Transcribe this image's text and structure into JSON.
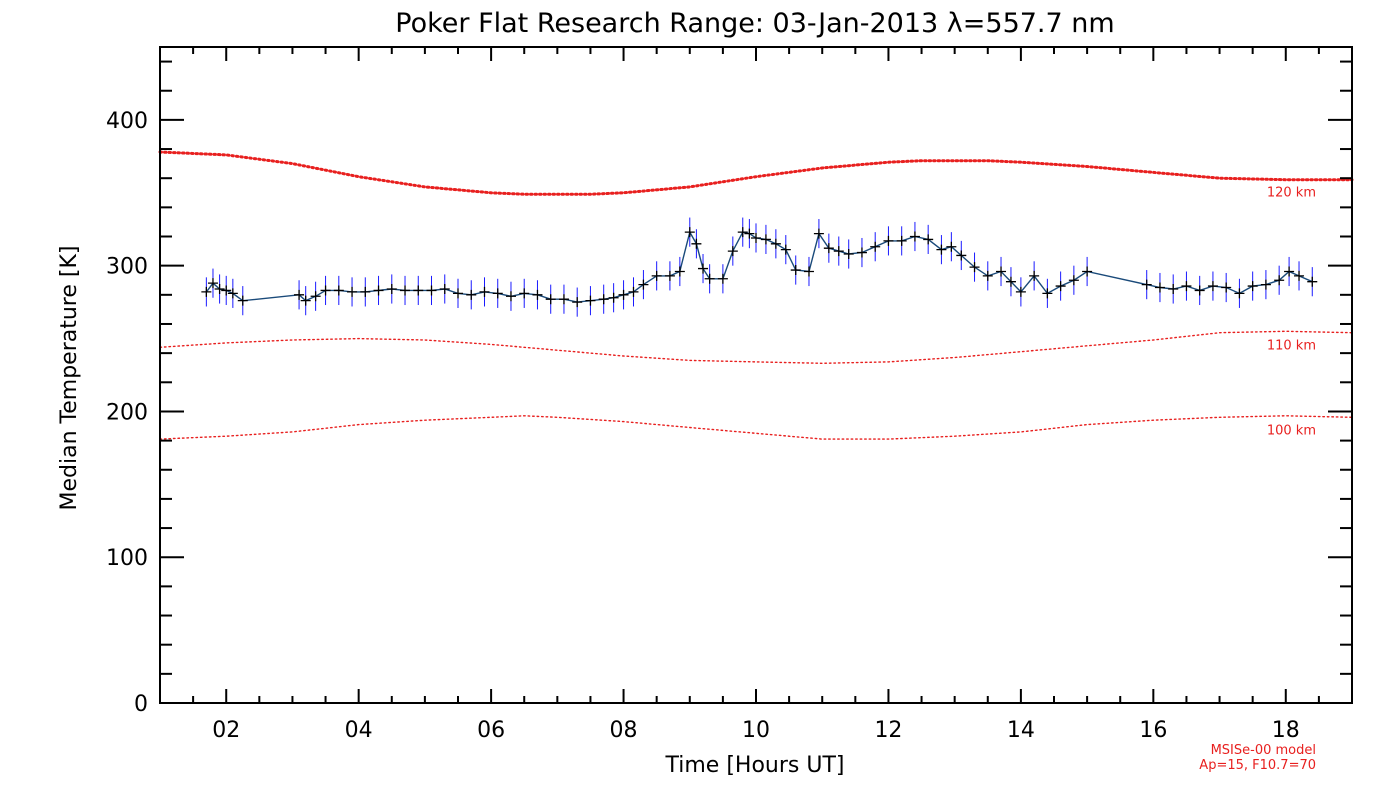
{
  "chart_data": {
    "type": "line",
    "title": "Poker Flat Research Range: 03-Jan-2013 λ=557.7 nm",
    "xlabel": "Time [Hours UT]",
    "ylabel": "Median Temperature [K]",
    "xlim": [
      1,
      19
    ],
    "ylim": [
      0,
      450
    ],
    "x_ticks": [
      {
        "value": 2,
        "label": "02"
      },
      {
        "value": 4,
        "label": "04"
      },
      {
        "value": 6,
        "label": "06"
      },
      {
        "value": 8,
        "label": "08"
      },
      {
        "value": 10,
        "label": "10"
      },
      {
        "value": 12,
        "label": "12"
      },
      {
        "value": 14,
        "label": "14"
      },
      {
        "value": 16,
        "label": "16"
      },
      {
        "value": 18,
        "label": "18"
      }
    ],
    "y_ticks": [
      {
        "value": 0,
        "label": "0"
      },
      {
        "value": 100,
        "label": "100"
      },
      {
        "value": 200,
        "label": "200"
      },
      {
        "value": 300,
        "label": "300"
      },
      {
        "value": 400,
        "label": "400"
      }
    ],
    "grid": false,
    "colors": {
      "data_line": "#1a4a7a",
      "error_bars": "#1a1aff",
      "markers": "#000000",
      "model": "#e8201f"
    },
    "series": [
      {
        "values": [
          [
            1.7,
            282
          ],
          [
            1.8,
            288
          ],
          [
            1.9,
            284
          ],
          [
            2.0,
            283
          ],
          [
            2.1,
            281
          ],
          [
            2.25,
            276
          ],
          [
            3.1,
            280
          ],
          [
            3.2,
            276
          ],
          [
            3.35,
            279
          ],
          [
            3.5,
            283
          ],
          [
            3.7,
            283
          ],
          [
            3.9,
            282
          ],
          [
            4.1,
            282
          ],
          [
            4.3,
            283
          ],
          [
            4.5,
            284
          ],
          [
            4.7,
            283
          ],
          [
            4.9,
            283
          ],
          [
            5.1,
            283
          ],
          [
            5.3,
            284
          ],
          [
            5.5,
            281
          ],
          [
            5.7,
            280
          ],
          [
            5.9,
            282
          ],
          [
            6.1,
            281
          ],
          [
            6.3,
            279
          ],
          [
            6.5,
            281
          ],
          [
            6.7,
            280
          ],
          [
            6.9,
            277
          ],
          [
            7.1,
            277
          ],
          [
            7.3,
            275
          ],
          [
            7.5,
            276
          ],
          [
            7.7,
            277
          ],
          [
            7.85,
            278
          ],
          [
            8.0,
            280
          ],
          [
            8.15,
            282
          ],
          [
            8.3,
            287
          ],
          [
            8.5,
            293
          ],
          [
            8.7,
            293
          ],
          [
            8.85,
            296
          ],
          [
            9.0,
            323
          ],
          [
            9.1,
            315
          ],
          [
            9.2,
            298
          ],
          [
            9.3,
            291
          ],
          [
            9.5,
            291
          ],
          [
            9.65,
            310
          ],
          [
            9.8,
            323
          ],
          [
            9.9,
            322
          ],
          [
            10.0,
            319
          ],
          [
            10.15,
            318
          ],
          [
            10.3,
            315
          ],
          [
            10.45,
            311
          ],
          [
            10.6,
            297
          ],
          [
            10.8,
            296
          ],
          [
            10.95,
            322
          ],
          [
            11.1,
            312
          ],
          [
            11.25,
            310
          ],
          [
            11.4,
            308
          ],
          [
            11.6,
            309
          ],
          [
            11.8,
            313
          ],
          [
            12.0,
            317
          ],
          [
            12.2,
            317
          ],
          [
            12.4,
            320
          ],
          [
            12.6,
            318
          ],
          [
            12.8,
            311
          ],
          [
            12.95,
            313
          ],
          [
            13.1,
            307
          ],
          [
            13.3,
            299
          ],
          [
            13.5,
            293
          ],
          [
            13.7,
            296
          ],
          [
            13.85,
            289
          ],
          [
            14.0,
            282
          ],
          [
            14.2,
            293
          ],
          [
            14.4,
            281
          ],
          [
            14.6,
            286
          ],
          [
            14.8,
            290
          ],
          [
            15.0,
            296
          ],
          [
            15.9,
            287
          ],
          [
            16.1,
            285
          ],
          [
            16.3,
            284
          ],
          [
            16.5,
            286
          ],
          [
            16.7,
            283
          ],
          [
            16.9,
            286
          ],
          [
            17.1,
            285
          ],
          [
            17.3,
            281
          ],
          [
            17.5,
            286
          ],
          [
            17.7,
            287
          ],
          [
            17.9,
            290
          ],
          [
            18.05,
            296
          ],
          [
            18.2,
            293
          ],
          [
            18.4,
            289
          ]
        ],
        "error": 10
      }
    ],
    "model_curves": [
      {
        "label": "120 km",
        "values": [
          [
            1,
            378
          ],
          [
            2,
            376
          ],
          [
            3,
            370
          ],
          [
            4,
            361
          ],
          [
            5,
            354
          ],
          [
            6,
            350
          ],
          [
            6.5,
            349
          ],
          [
            7.5,
            349
          ],
          [
            8,
            350
          ],
          [
            9,
            354
          ],
          [
            10,
            361
          ],
          [
            11,
            367
          ],
          [
            12,
            371
          ],
          [
            12.5,
            372
          ],
          [
            13.5,
            372
          ],
          [
            14,
            371
          ],
          [
            15,
            368
          ],
          [
            16,
            364
          ],
          [
            17,
            360
          ],
          [
            18,
            359
          ],
          [
            19,
            359
          ]
        ]
      },
      {
        "label": "110 km",
        "values": [
          [
            1,
            244
          ],
          [
            2,
            247
          ],
          [
            3,
            249
          ],
          [
            4,
            250
          ],
          [
            5,
            249
          ],
          [
            6,
            246
          ],
          [
            7,
            242
          ],
          [
            8,
            238
          ],
          [
            9,
            235
          ],
          [
            10,
            234
          ],
          [
            11,
            233
          ],
          [
            12,
            234
          ],
          [
            13,
            237
          ],
          [
            14,
            241
          ],
          [
            15,
            245
          ],
          [
            16,
            249
          ],
          [
            17,
            254
          ],
          [
            18,
            255
          ],
          [
            19,
            254
          ]
        ]
      },
      {
        "label": "100 km",
        "values": [
          [
            1,
            181
          ],
          [
            2,
            183
          ],
          [
            3,
            186
          ],
          [
            4,
            191
          ],
          [
            5,
            194
          ],
          [
            6,
            196
          ],
          [
            6.5,
            197
          ],
          [
            7,
            196
          ],
          [
            8,
            193
          ],
          [
            9,
            189
          ],
          [
            10,
            185
          ],
          [
            11,
            181
          ],
          [
            12,
            181
          ],
          [
            13,
            183
          ],
          [
            14,
            186
          ],
          [
            15,
            191
          ],
          [
            16,
            194
          ],
          [
            17,
            196
          ],
          [
            18,
            197
          ],
          [
            19,
            196
          ]
        ]
      }
    ],
    "model_note": [
      "MSISe-00 model",
      "Ap=15, F10.7=70"
    ]
  }
}
